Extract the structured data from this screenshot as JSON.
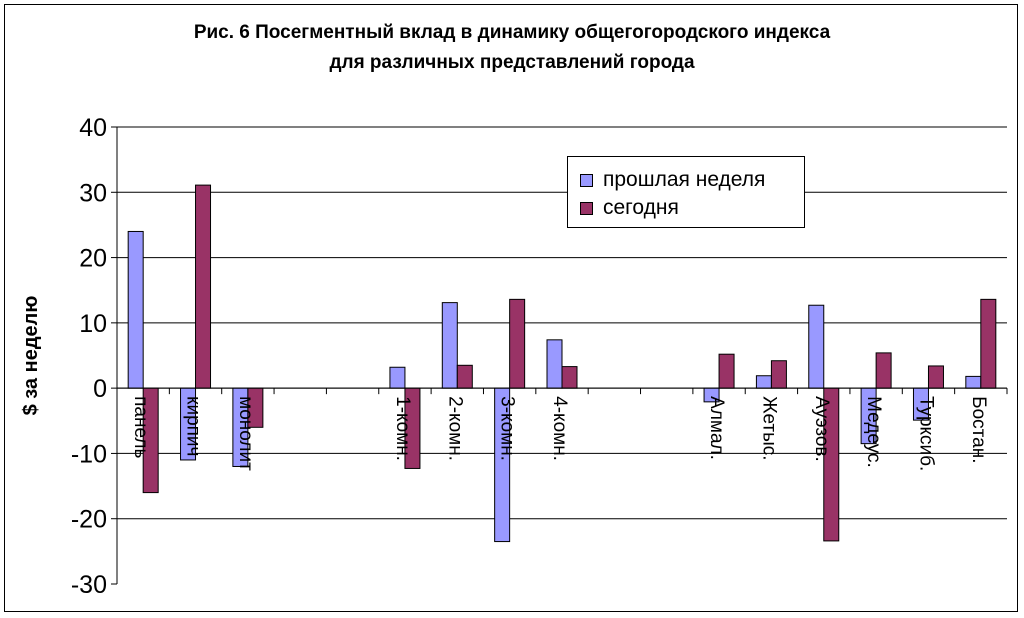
{
  "title": {
    "line1": "Рис. 6 Посегментный вклад в динамику общегогородского  индекса",
    "line2": "для различных представлений города"
  },
  "colors": {
    "series_1": "#9999ff",
    "series_2": "#993366",
    "axis": "#000000",
    "grid": "#000000"
  },
  "chart_data": {
    "type": "bar",
    "categories": [
      "панель",
      "кирпич",
      "монолит",
      "",
      "",
      "1-комн.",
      "2-комн.",
      "3-комн.",
      "4-комн.",
      "",
      "",
      "Алмал.",
      "Жетыс.",
      "Ауэзов.",
      "Медеус.",
      "Турксиб.",
      "Бостан."
    ],
    "series": [
      {
        "name": "прошлая неделя",
        "values": [
          24,
          -11,
          -12,
          null,
          null,
          3.2,
          13.1,
          -23.5,
          7.4,
          null,
          null,
          -2.1,
          1.9,
          12.7,
          -8.5,
          -4.9,
          1.8
        ]
      },
      {
        "name": "сегодня",
        "values": [
          -16,
          31.1,
          -6,
          null,
          null,
          -12.3,
          3.5,
          13.6,
          3.3,
          null,
          null,
          5.2,
          4.2,
          -23.4,
          5.4,
          3.4,
          13.6
        ]
      }
    ],
    "xlabel": "",
    "ylabel": "$ за неделю",
    "ylim": [
      -30,
      40
    ],
    "yticks": [
      40,
      30,
      20,
      10,
      0,
      -10,
      -20,
      -30
    ],
    "grid": true,
    "legend_position": "top-right"
  }
}
